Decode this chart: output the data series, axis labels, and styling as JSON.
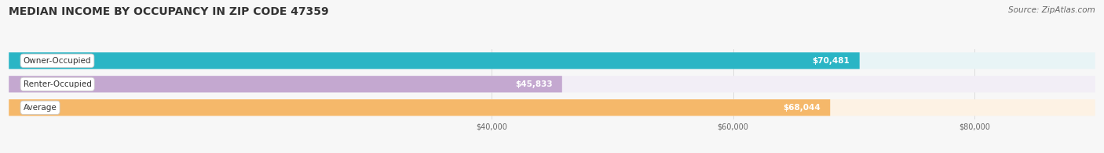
{
  "title": "MEDIAN INCOME BY OCCUPANCY IN ZIP CODE 47359",
  "source": "Source: ZipAtlas.com",
  "categories": [
    "Owner-Occupied",
    "Renter-Occupied",
    "Average"
  ],
  "values": [
    70481,
    45833,
    68044
  ],
  "labels": [
    "$70,481",
    "$45,833",
    "$68,044"
  ],
  "bar_colors": [
    "#2ab5c5",
    "#c4a8d0",
    "#f5b86a"
  ],
  "bar_bg_colors": [
    "#e8f4f6",
    "#f2eef6",
    "#fdf2e4"
  ],
  "xlim_min": 0,
  "xlim_max": 90000,
  "xtick_values": [
    40000,
    60000,
    80000
  ],
  "xticklabels": [
    "$40,000",
    "$60,000",
    "$80,000"
  ],
  "title_fontsize": 10,
  "source_fontsize": 7.5,
  "cat_fontsize": 7.5,
  "val_fontsize": 7.5,
  "tick_fontsize": 7,
  "bar_height": 0.36,
  "bar_gap": 0.58,
  "background_color": "#f7f7f7",
  "grid_color": "#dddddd",
  "text_dark": "#333333",
  "text_mid": "#666666"
}
